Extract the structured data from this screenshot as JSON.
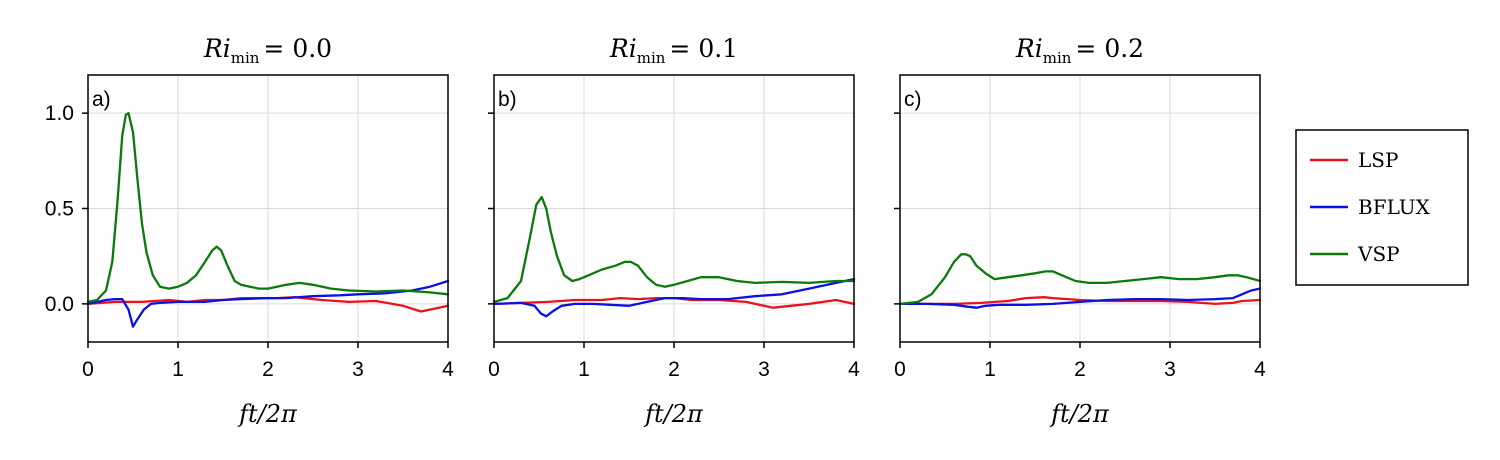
{
  "chart_data": {
    "type": "line",
    "xlabel_symbol": "ft/2π",
    "xlim": [
      0,
      4
    ],
    "ylim": [
      -0.2,
      1.2
    ],
    "xticks": [
      "0",
      "1",
      "2",
      "3",
      "4"
    ],
    "yticks": [
      "0.0",
      "0.5",
      "1.0"
    ],
    "grid": true,
    "legend_placement": "right",
    "legend": [
      {
        "name": "LSP",
        "color": "#e8121a"
      },
      {
        "name": "BFLUX",
        "color": "#0a12e0"
      },
      {
        "name": "VSP",
        "color": "#0a7a0a"
      }
    ],
    "panels": [
      {
        "label": "a)",
        "title_symbol": "Ri",
        "title_subscript": "min",
        "title_value": "= 0.0",
        "series": [
          {
            "name": "LSP",
            "color": "#e8121a",
            "x": [
              0,
              0.3,
              0.6,
              0.9,
              1.1,
              1.3,
              1.5,
              1.7,
              1.9,
              2.1,
              2.3,
              2.6,
              2.9,
              3.2,
              3.5,
              3.7,
              3.9,
              4.0
            ],
            "y": [
              0,
              0.01,
              0.01,
              0.02,
              0.01,
              0.02,
              0.02,
              0.03,
              0.03,
              0.03,
              0.035,
              0.02,
              0.01,
              0.015,
              -0.01,
              -0.04,
              -0.02,
              -0.01
            ]
          },
          {
            "name": "BFLUX",
            "color": "#0a12e0",
            "x": [
              0,
              0.2,
              0.3,
              0.38,
              0.45,
              0.5,
              0.55,
              0.62,
              0.7,
              0.8,
              1.0,
              1.3,
              1.5,
              1.7,
              2.0,
              2.2,
              2.5,
              2.8,
              3.0,
              3.3,
              3.6,
              3.8,
              4.0
            ],
            "y": [
              0,
              0.02,
              0.025,
              0.025,
              -0.03,
              -0.12,
              -0.08,
              -0.03,
              0,
              0.005,
              0.01,
              0.01,
              0.02,
              0.025,
              0.03,
              0.03,
              0.04,
              0.045,
              0.05,
              0.055,
              0.07,
              0.09,
              0.12
            ]
          },
          {
            "name": "VSP",
            "color": "#0a7a0a",
            "x": [
              0,
              0.1,
              0.2,
              0.27,
              0.33,
              0.38,
              0.42,
              0.45,
              0.5,
              0.55,
              0.6,
              0.65,
              0.72,
              0.8,
              0.9,
              1.0,
              1.1,
              1.2,
              1.3,
              1.38,
              1.43,
              1.48,
              1.55,
              1.63,
              1.7,
              1.8,
              1.9,
              2.0,
              2.1,
              2.2,
              2.35,
              2.5,
              2.7,
              2.9,
              3.2,
              3.5,
              3.8,
              4.0
            ],
            "y": [
              0.01,
              0.02,
              0.07,
              0.22,
              0.55,
              0.88,
              0.99,
              1.0,
              0.9,
              0.65,
              0.42,
              0.27,
              0.15,
              0.09,
              0.08,
              0.09,
              0.11,
              0.15,
              0.22,
              0.28,
              0.3,
              0.28,
              0.2,
              0.12,
              0.1,
              0.09,
              0.08,
              0.08,
              0.09,
              0.1,
              0.11,
              0.1,
              0.08,
              0.07,
              0.065,
              0.07,
              0.06,
              0.05
            ]
          }
        ]
      },
      {
        "label": "b)",
        "title_symbol": "Ri",
        "title_subscript": "min",
        "title_value": "= 0.1",
        "series": [
          {
            "name": "LSP",
            "color": "#e8121a",
            "x": [
              0,
              0.3,
              0.6,
              0.9,
              1.2,
              1.4,
              1.6,
              1.8,
              2.0,
              2.2,
              2.5,
              2.8,
              3.0,
              3.1,
              3.3,
              3.5,
              3.8,
              4.0
            ],
            "y": [
              0,
              0.005,
              0.01,
              0.02,
              0.02,
              0.03,
              0.025,
              0.03,
              0.03,
              0.02,
              0.02,
              0.01,
              -0.01,
              -0.02,
              -0.01,
              0,
              0.02,
              0
            ]
          },
          {
            "name": "BFLUX",
            "color": "#0a12e0",
            "x": [
              0,
              0.3,
              0.45,
              0.52,
              0.58,
              0.65,
              0.75,
              0.9,
              1.1,
              1.3,
              1.5,
              1.7,
              1.9,
              2.1,
              2.3,
              2.6,
              2.9,
              3.2,
              3.5,
              3.8,
              4.0
            ],
            "y": [
              0,
              0.005,
              -0.01,
              -0.05,
              -0.065,
              -0.04,
              -0.01,
              0,
              0,
              -0.005,
              -0.01,
              0.01,
              0.03,
              0.03,
              0.025,
              0.025,
              0.04,
              0.05,
              0.08,
              0.11,
              0.13
            ]
          },
          {
            "name": "VSP",
            "color": "#0a7a0a",
            "x": [
              0,
              0.15,
              0.3,
              0.4,
              0.47,
              0.53,
              0.58,
              0.63,
              0.7,
              0.78,
              0.87,
              0.95,
              1.05,
              1.2,
              1.35,
              1.45,
              1.52,
              1.6,
              1.7,
              1.8,
              1.9,
              2.0,
              2.15,
              2.3,
              2.5,
              2.7,
              2.9,
              3.2,
              3.5,
              3.8,
              4.0
            ],
            "y": [
              0.01,
              0.03,
              0.12,
              0.35,
              0.52,
              0.56,
              0.5,
              0.38,
              0.25,
              0.15,
              0.12,
              0.13,
              0.15,
              0.18,
              0.2,
              0.22,
              0.22,
              0.2,
              0.14,
              0.1,
              0.09,
              0.1,
              0.12,
              0.14,
              0.14,
              0.12,
              0.11,
              0.115,
              0.11,
              0.12,
              0.12
            ]
          }
        ]
      },
      {
        "label": "c)",
        "title_symbol": "Ri",
        "title_subscript": "min",
        "title_value": "= 0.2",
        "series": [
          {
            "name": "LSP",
            "color": "#e8121a",
            "x": [
              0,
              0.3,
              0.6,
              0.9,
              1.2,
              1.4,
              1.6,
              1.7,
              2.0,
              2.3,
              2.6,
              2.9,
              3.2,
              3.5,
              3.7,
              3.8,
              4.0
            ],
            "y": [
              0,
              0,
              0,
              0.005,
              0.015,
              0.03,
              0.035,
              0.03,
              0.02,
              0.015,
              0.015,
              0.015,
              0.01,
              0,
              0.005,
              0.015,
              0.02
            ]
          },
          {
            "name": "BFLUX",
            "color": "#0a12e0",
            "x": [
              0,
              0.3,
              0.6,
              0.75,
              0.85,
              0.95,
              1.1,
              1.4,
              1.7,
              2.0,
              2.3,
              2.6,
              2.9,
              3.2,
              3.5,
              3.7,
              3.8,
              3.9,
              4.0
            ],
            "y": [
              0,
              0,
              -0.005,
              -0.015,
              -0.02,
              -0.01,
              -0.005,
              -0.005,
              0,
              0.01,
              0.02,
              0.025,
              0.025,
              0.02,
              0.025,
              0.03,
              0.05,
              0.07,
              0.08
            ]
          },
          {
            "name": "VSP",
            "color": "#0a7a0a",
            "x": [
              0,
              0.2,
              0.35,
              0.5,
              0.6,
              0.68,
              0.73,
              0.78,
              0.85,
              0.95,
              1.05,
              1.2,
              1.35,
              1.5,
              1.62,
              1.7,
              1.8,
              1.95,
              2.1,
              2.3,
              2.5,
              2.7,
              2.9,
              3.1,
              3.3,
              3.5,
              3.65,
              3.75,
              3.85,
              4.0
            ],
            "y": [
              0,
              0.01,
              0.05,
              0.14,
              0.22,
              0.26,
              0.26,
              0.25,
              0.2,
              0.16,
              0.13,
              0.14,
              0.15,
              0.16,
              0.17,
              0.17,
              0.15,
              0.12,
              0.11,
              0.11,
              0.12,
              0.13,
              0.14,
              0.13,
              0.13,
              0.14,
              0.15,
              0.15,
              0.14,
              0.12
            ]
          }
        ]
      }
    ]
  }
}
